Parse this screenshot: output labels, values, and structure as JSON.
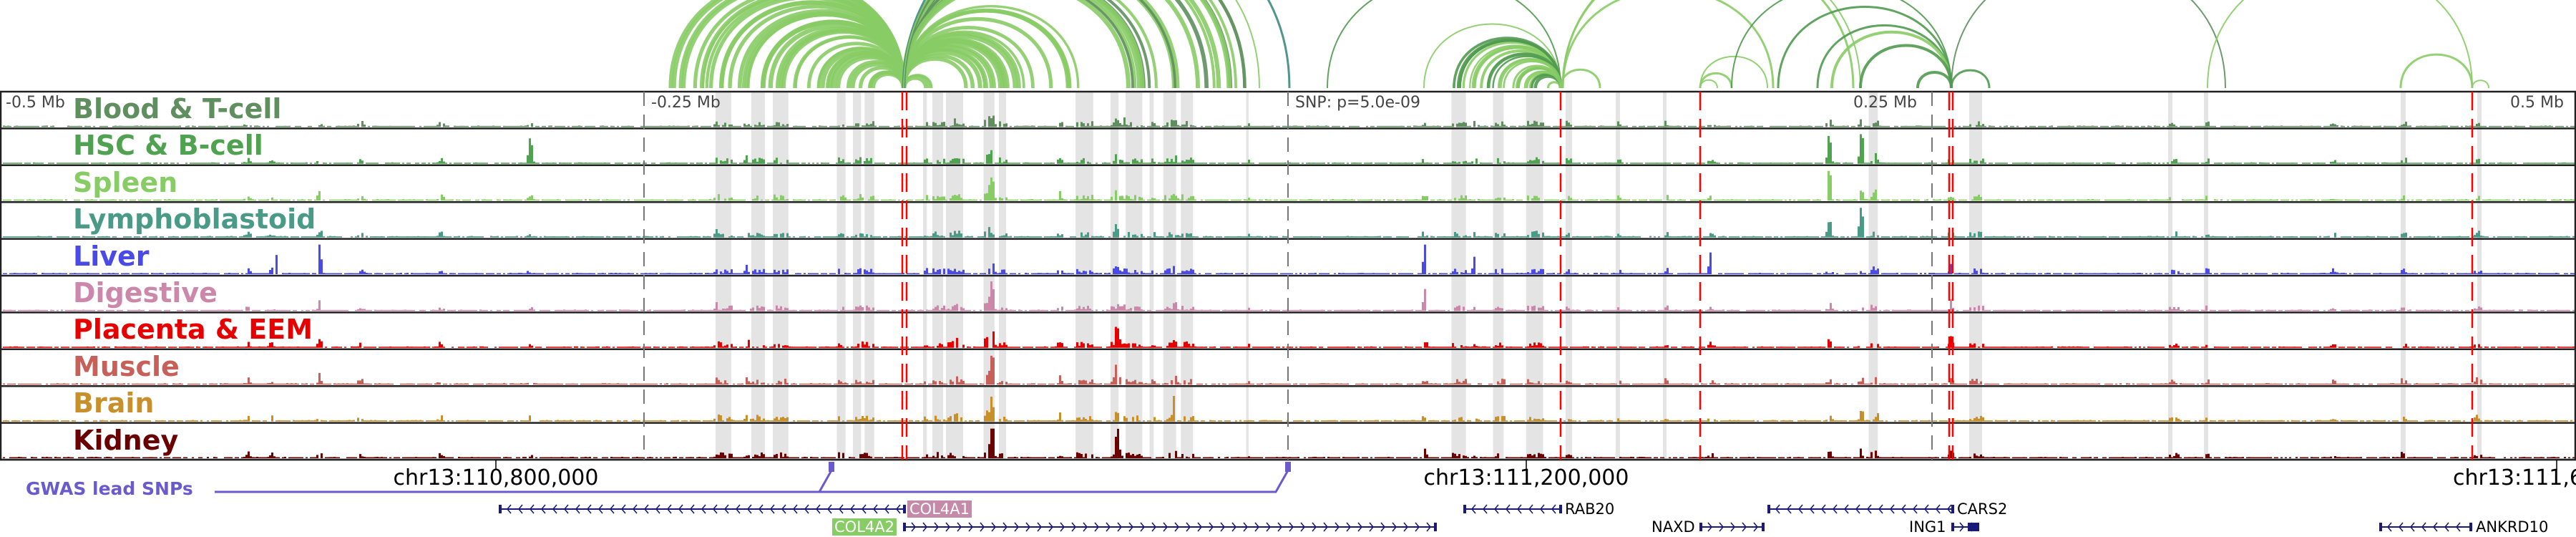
{
  "tracks": [
    {
      "label": "Blood & T-cell",
      "color": "#5f8f5f"
    },
    {
      "label": "HSC & B-cell",
      "color": "#4fa24f"
    },
    {
      "label": "Spleen",
      "color": "#88cc66"
    },
    {
      "label": "Lymphoblastoid",
      "color": "#4a9a88"
    },
    {
      "label": "Liver",
      "color": "#4a4ae6"
    },
    {
      "label": "Digestive",
      "color": "#cc88aa"
    },
    {
      "label": "Placenta & EEM",
      "color": "#e60000"
    },
    {
      "label": "Muscle",
      "color": "#c8605a"
    },
    {
      "label": "Brain",
      "color": "#c8902a"
    },
    {
      "label": "Kidney",
      "color": "#6b0000"
    }
  ],
  "axis_labels": {
    "minus_05": "-0.5 Mb",
    "minus_025": "-0.25 Mb",
    "snp": "SNP: p=5.0e-09",
    "plus_025": "0.25 Mb",
    "plus_05": "0.5 Mb"
  },
  "coordinates": [
    "chr13:110,800,000",
    "chr13:111,200,000",
    "chr13:111,6"
  ],
  "gwas_label": "GWAS lead SNPs",
  "genes": {
    "col4a1": {
      "name": "COL4A1",
      "color": "#c48aa8"
    },
    "col4a2": {
      "name": "COL4A2",
      "color": "#88cc66"
    },
    "rab20": {
      "name": "RAB20"
    },
    "naxd": {
      "name": "NAXD"
    },
    "cars2": {
      "name": "CARS2"
    },
    "ing1": {
      "name": "ING1"
    },
    "ankrd10": {
      "name": "ANKRD10"
    }
  },
  "colors": {
    "gene": "#1a1a7a",
    "gwas": "#6a5acd",
    "highlight": "#e4e4e4",
    "snp_marker": "#ff0000"
  }
}
